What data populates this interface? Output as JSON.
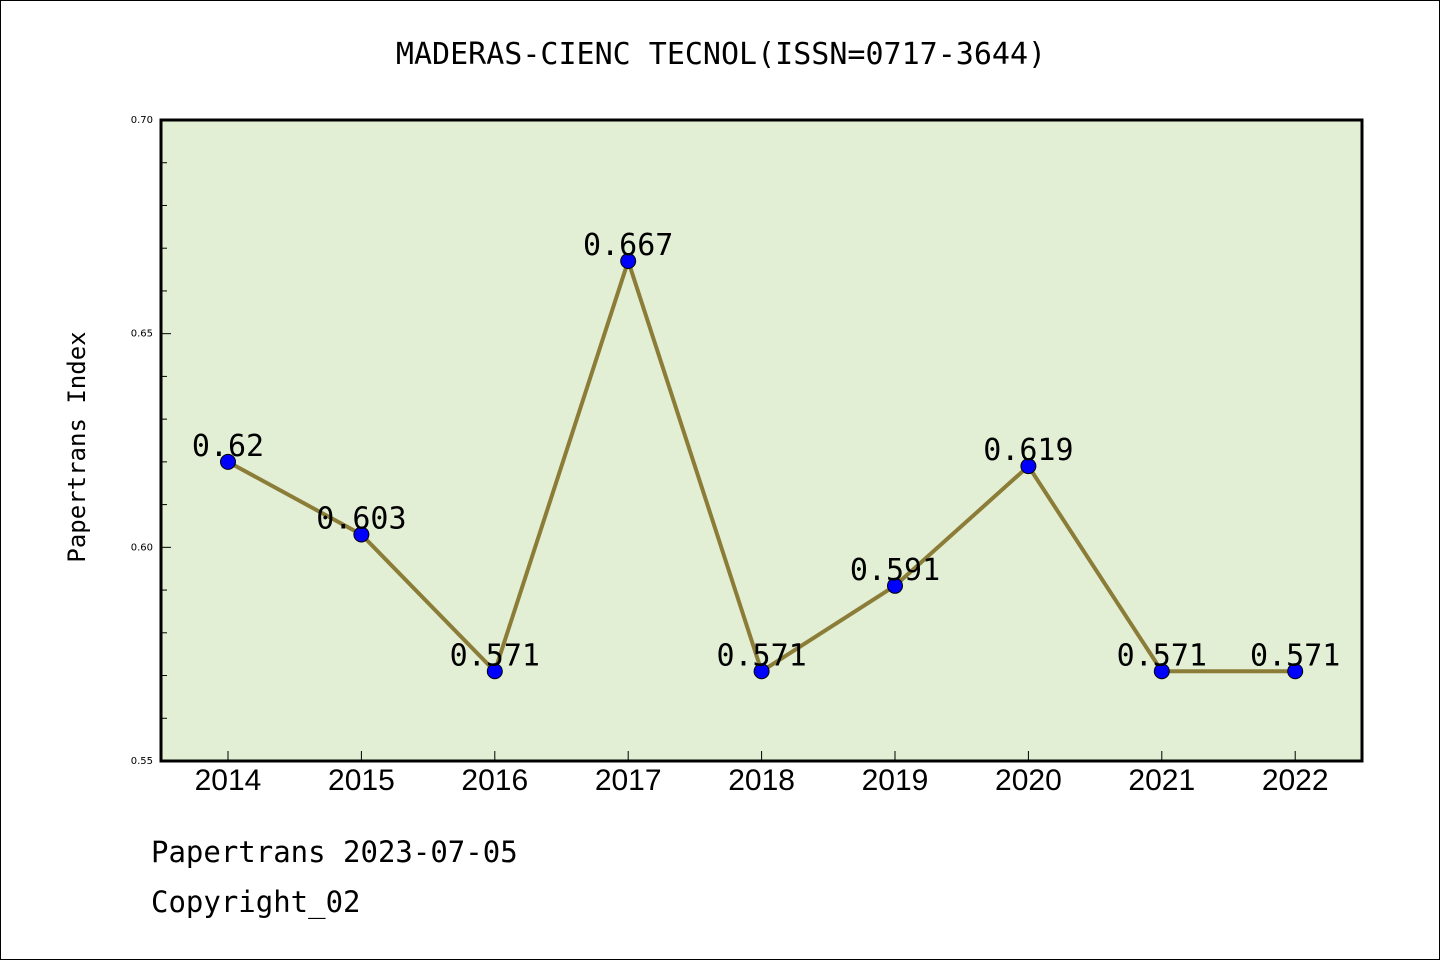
{
  "chart_data": {
    "type": "line",
    "title": "MADERAS-CIENC TECNOL(ISSN=0717-3644)",
    "ylabel": "Papertrans Index",
    "xlabel": "",
    "categories": [
      "2014",
      "2015",
      "2016",
      "2017",
      "2018",
      "2019",
      "2020",
      "2021",
      "2022"
    ],
    "values": [
      0.62,
      0.603,
      0.571,
      0.667,
      0.571,
      0.591,
      0.619,
      0.571,
      0.571
    ],
    "data_labels": [
      "0.62",
      "0.603",
      "0.571",
      "0.667",
      "0.571",
      "0.591",
      "0.619",
      "0.571",
      "0.571"
    ],
    "ylim": [
      0.55,
      0.7
    ],
    "yticks": [
      "0.55",
      "0.60",
      "0.65",
      "0.70"
    ],
    "ytick_values": [
      0.55,
      0.6,
      0.65,
      0.7
    ],
    "minor_tick_step": 0.01,
    "grid": false,
    "colors": {
      "plot_background": "#e2efd5",
      "line": "#8b7d37",
      "marker": "#0000ff"
    }
  },
  "footer": {
    "date_text": "Papertrans 2023-07-05",
    "copyright_text": "Copyright_02"
  }
}
